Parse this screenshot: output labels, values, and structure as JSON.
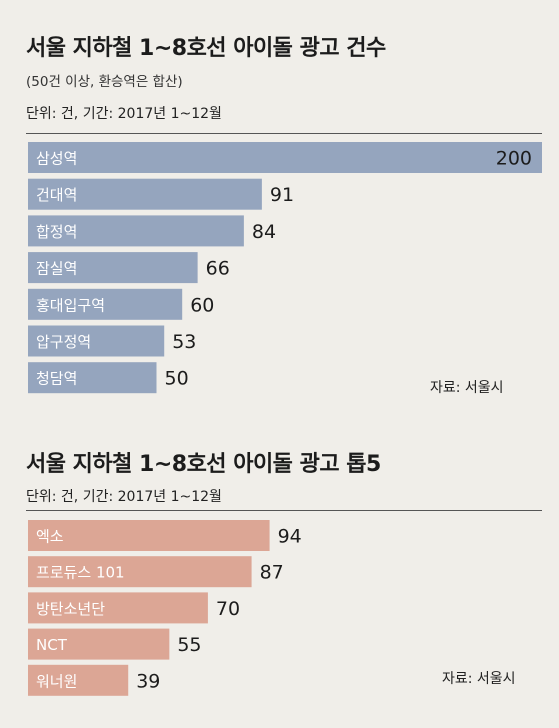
{
  "colors": {
    "background": "#f0eee9",
    "chart1_bar": "#95a5be",
    "chart2_bar": "#dca695",
    "rule": "#555555"
  },
  "chart_data": [
    {
      "type": "bar",
      "orientation": "horizontal",
      "title": "서울 지하철 1~8호선 아이돌 광고 건수",
      "subtitle": "(50건 이상, 환승역은 합산)",
      "unit_note": "단위: 건, 기간: 2017년 1~12월",
      "source": "자료: 서울시",
      "categories": [
        "삼성역",
        "건대역",
        "합정역",
        "잠실역",
        "홍대입구역",
        "압구정역",
        "청담역"
      ],
      "values": [
        200,
        91,
        84,
        66,
        60,
        53,
        50
      ],
      "xlim": [
        0,
        200
      ]
    },
    {
      "type": "bar",
      "orientation": "horizontal",
      "title": "서울 지하철 1~8호선 아이돌 광고 톱5",
      "unit_note": "단위: 건, 기간: 2017년 1~12월",
      "source": "자료: 서울시",
      "categories": [
        "엑소",
        "프로듀스 101",
        "방탄소년단",
        "NCT",
        "워너원"
      ],
      "values": [
        94,
        87,
        70,
        55,
        39
      ],
      "xlim": [
        0,
        200
      ]
    }
  ]
}
